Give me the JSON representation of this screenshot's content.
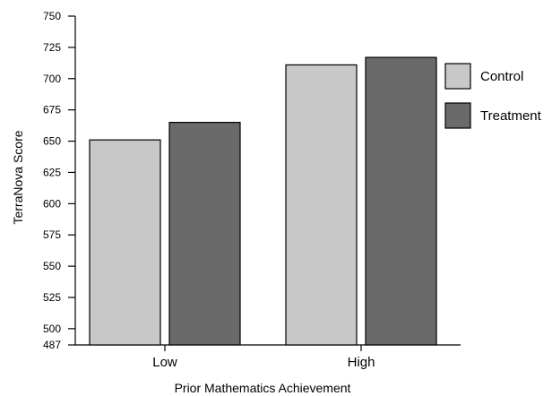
{
  "chart_data": {
    "type": "bar",
    "title": "",
    "xlabel": "Prior Mathematics Achievement",
    "ylabel": "TerraNova Score",
    "categories": [
      "Low",
      "High"
    ],
    "series": [
      {
        "name": "Control",
        "values": [
          651,
          711
        ],
        "color": "#c8c8c8"
      },
      {
        "name": "Treatment",
        "values": [
          665,
          717
        ],
        "color": "#6a6a6a"
      }
    ],
    "ylim": [
      487,
      750
    ],
    "yticks": [
      750,
      725,
      700,
      675,
      650,
      625,
      600,
      575,
      550,
      525,
      500,
      487
    ],
    "grid": false,
    "legend_position": "right"
  }
}
